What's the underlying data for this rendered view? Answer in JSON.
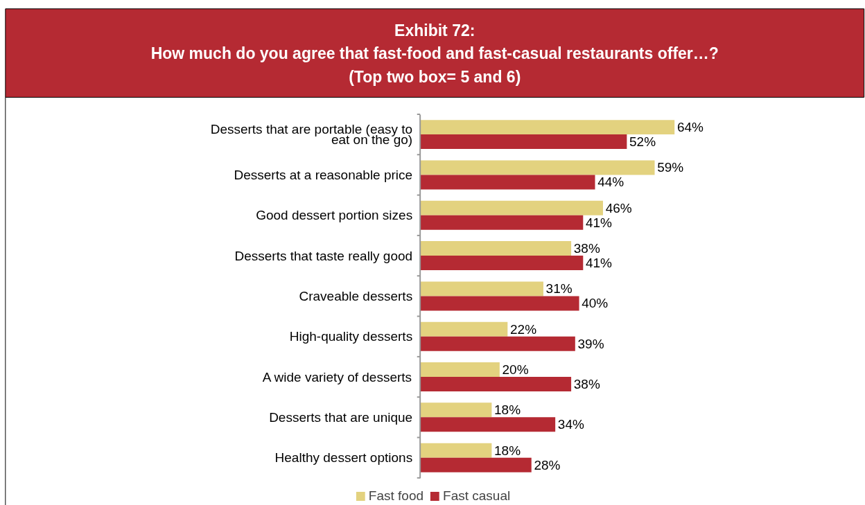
{
  "chart_data": {
    "type": "bar",
    "orientation": "horizontal",
    "title": "Exhibit 72:\nHow much do you agree that fast-food and fast-casual restaurants offer…?",
    "subtitle": "(Top two box= 5 and 6)",
    "categories": [
      "Desserts that are portable (easy to eat on the go)",
      "Desserts at a reasonable price",
      "Good dessert portion sizes",
      "Desserts that taste really good",
      "Craveable desserts",
      "High-quality desserts",
      "A wide variety of desserts",
      "Desserts that are unique",
      "Healthy dessert options"
    ],
    "series": [
      {
        "name": "Fast food",
        "color": "#e3d27f",
        "values": [
          64,
          59,
          46,
          38,
          31,
          22,
          20,
          18,
          18
        ],
        "value_labels": [
          "64%",
          "59%",
          "46%",
          "38%",
          "31%",
          "22%",
          "20%",
          "18%",
          "18%"
        ]
      },
      {
        "name": "Fast casual",
        "color": "#b52a33",
        "values": [
          52,
          44,
          41,
          41,
          40,
          39,
          38,
          34,
          28
        ],
        "value_labels": [
          "52%",
          "44%",
          "41%",
          "41%",
          "40%",
          "39%",
          "38%",
          "34%",
          "28%"
        ]
      }
    ],
    "legend": "bottom",
    "grid": false
  }
}
